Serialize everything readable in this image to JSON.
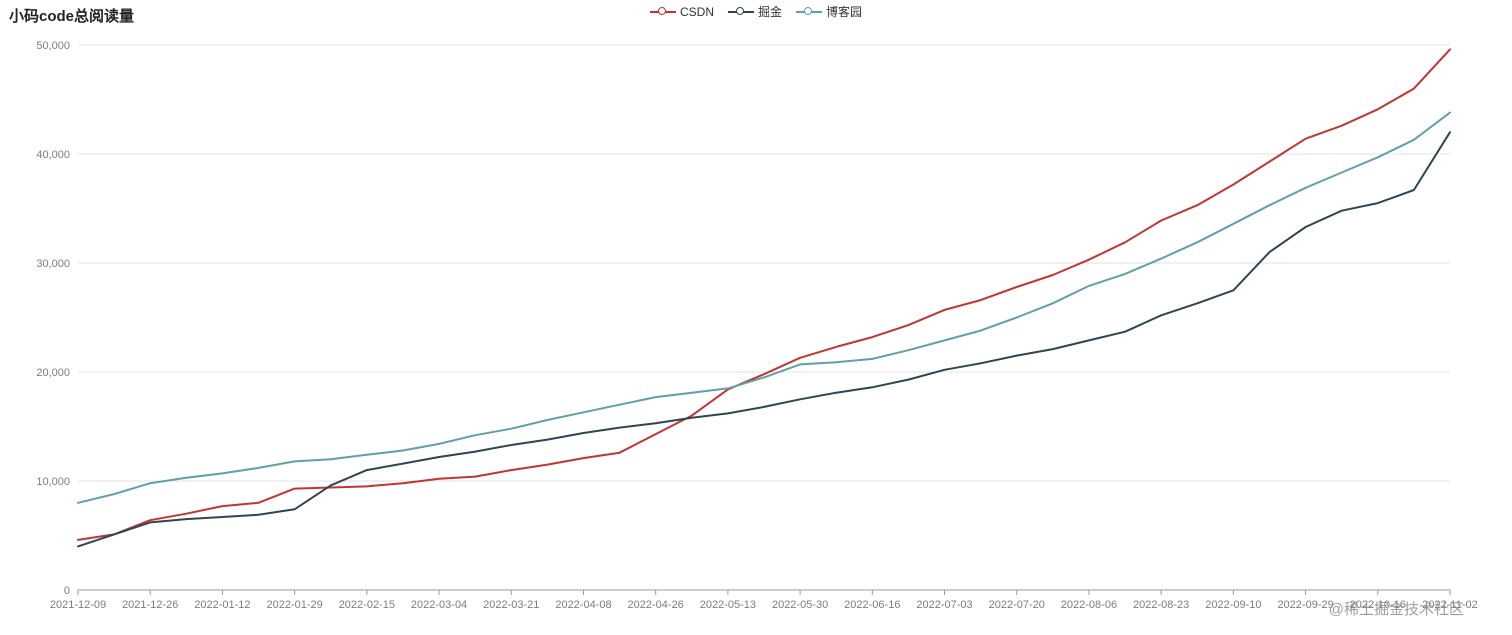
{
  "title": "小码code总阅读量",
  "watermark": "@稀土掘金技术社区",
  "chart_data": {
    "type": "line",
    "title": "小码code总阅读量",
    "legend_position": "top-center",
    "grid": true,
    "ylim": [
      0,
      50000
    ],
    "y_ticks": [
      0,
      10000,
      20000,
      30000,
      40000,
      50000
    ],
    "y_tick_labels": [
      "0",
      "10,000",
      "20,000",
      "30,000",
      "40,000",
      "50,000"
    ],
    "x": [
      "2021-12-09",
      "2021-12-17",
      "2021-12-26",
      "2022-01-03",
      "2022-01-12",
      "2022-01-20",
      "2022-01-29",
      "2022-02-06",
      "2022-02-15",
      "2022-02-23",
      "2022-03-04",
      "2022-03-12",
      "2022-03-21",
      "2022-03-30",
      "2022-04-08",
      "2022-04-17",
      "2022-04-26",
      "2022-05-04",
      "2022-05-13",
      "2022-05-21",
      "2022-05-30",
      "2022-06-07",
      "2022-06-16",
      "2022-06-24",
      "2022-07-03",
      "2022-07-11",
      "2022-07-20",
      "2022-07-28",
      "2022-08-06",
      "2022-08-14",
      "2022-08-23",
      "2022-09-01",
      "2022-09-10",
      "2022-09-19",
      "2022-09-29",
      "2022-10-07",
      "2022-10-16",
      "2022-10-24",
      "2022-11-02"
    ],
    "x_tick_labels": [
      "2021-12-09",
      "2021-12-26",
      "2022-01-12",
      "2022-01-29",
      "2022-02-15",
      "2022-03-04",
      "2022-03-21",
      "2022-04-08",
      "2022-04-26",
      "2022-05-13",
      "2022-05-30",
      "2022-06-16",
      "2022-07-03",
      "2022-07-20",
      "2022-08-06",
      "2022-08-23",
      "2022-09-10",
      "2022-09-29",
      "2022-10-16",
      "2022-11-02"
    ],
    "series": [
      {
        "name": "CSDN",
        "color": "#c23531",
        "values": [
          4600,
          5100,
          6400,
          7000,
          7700,
          8000,
          9300,
          9400,
          9500,
          9800,
          10200,
          10400,
          11000,
          11500,
          12100,
          12600,
          14300,
          16000,
          18400,
          19800,
          21300,
          22300,
          23200,
          24300,
          25700,
          26600,
          27800,
          28900,
          30300,
          31900,
          33900,
          35300,
          37200,
          39300,
          41400,
          42600,
          44100,
          46000,
          49600
        ]
      },
      {
        "name": "掘金",
        "color": "#2f4554",
        "values": [
          4000,
          5100,
          6200,
          6500,
          6700,
          6900,
          7400,
          9600,
          11000,
          11600,
          12200,
          12700,
          13300,
          13800,
          14400,
          14900,
          15300,
          15800,
          16200,
          16800,
          17500,
          18100,
          18600,
          19300,
          20200,
          20800,
          21500,
          22100,
          22900,
          23700,
          25200,
          26300,
          27500,
          31000,
          33300,
          34800,
          35500,
          36700,
          42000
        ]
      },
      {
        "name": "博客园",
        "color": "#61a0a8",
        "values": [
          8000,
          8800,
          9800,
          10300,
          10700,
          11200,
          11800,
          12000,
          12400,
          12800,
          13400,
          14200,
          14800,
          15600,
          16300,
          17000,
          17700,
          18100,
          18500,
          19500,
          20700,
          20900,
          21200,
          22000,
          22900,
          23800,
          25000,
          26300,
          27900,
          29000,
          30400,
          31900,
          33600,
          35300,
          36900,
          38300,
          39700,
          41300,
          43800
        ]
      }
    ]
  }
}
